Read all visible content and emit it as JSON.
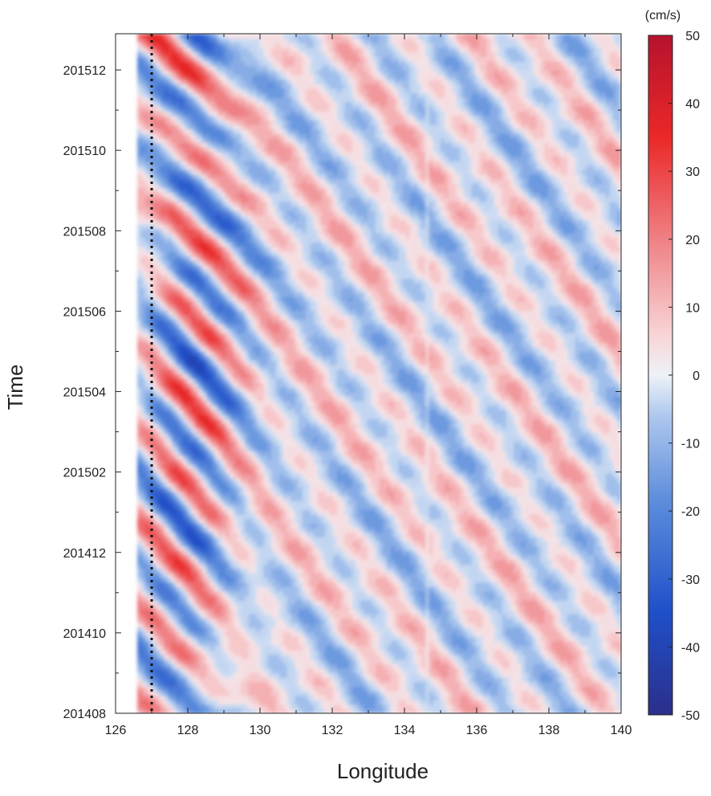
{
  "chart_data": {
    "type": "heatmap",
    "title": "",
    "xlabel": "Longitude",
    "ylabel": "Time",
    "xlim": [
      126,
      140
    ],
    "x_ticks": [
      "126",
      "128",
      "130",
      "132",
      "134",
      "136",
      "138",
      "140"
    ],
    "x_tick_values": [
      126,
      128,
      130,
      132,
      134,
      136,
      138,
      140
    ],
    "y_ticks": [
      "201408",
      "201410",
      "201412",
      "201502",
      "201504",
      "201506",
      "201508",
      "201510",
      "201512"
    ],
    "y_tick_values": [
      0,
      2,
      4,
      6,
      8,
      10,
      12,
      14,
      16
    ],
    "ylim": [
      0,
      16.9
    ],
    "colorbar": {
      "unit": "(cm/s)",
      "min": -50,
      "max": 50,
      "ticks": [
        "50",
        "40",
        "30",
        "20",
        "10",
        "0",
        "-10",
        "-20",
        "-30",
        "-40",
        "-50"
      ],
      "tick_values": [
        50,
        40,
        30,
        20,
        10,
        0,
        -10,
        -20,
        -30,
        -40,
        -50
      ],
      "colors": {
        "neg_max": "#2b2f8a",
        "neg_strong": "#1f4fc8",
        "neg_mid": "#5f8fdc",
        "neg_light": "#aec8ee",
        "zero": "#eef2f8",
        "pos_light": "#f8d4d6",
        "pos_mid": "#f08c90",
        "pos_strong": "#ea2828",
        "pos_max": "#b5132e"
      }
    },
    "reference_line": {
      "longitude": 127,
      "style": "dotted"
    },
    "data_start_longitude": 126.6,
    "grid": false
  }
}
